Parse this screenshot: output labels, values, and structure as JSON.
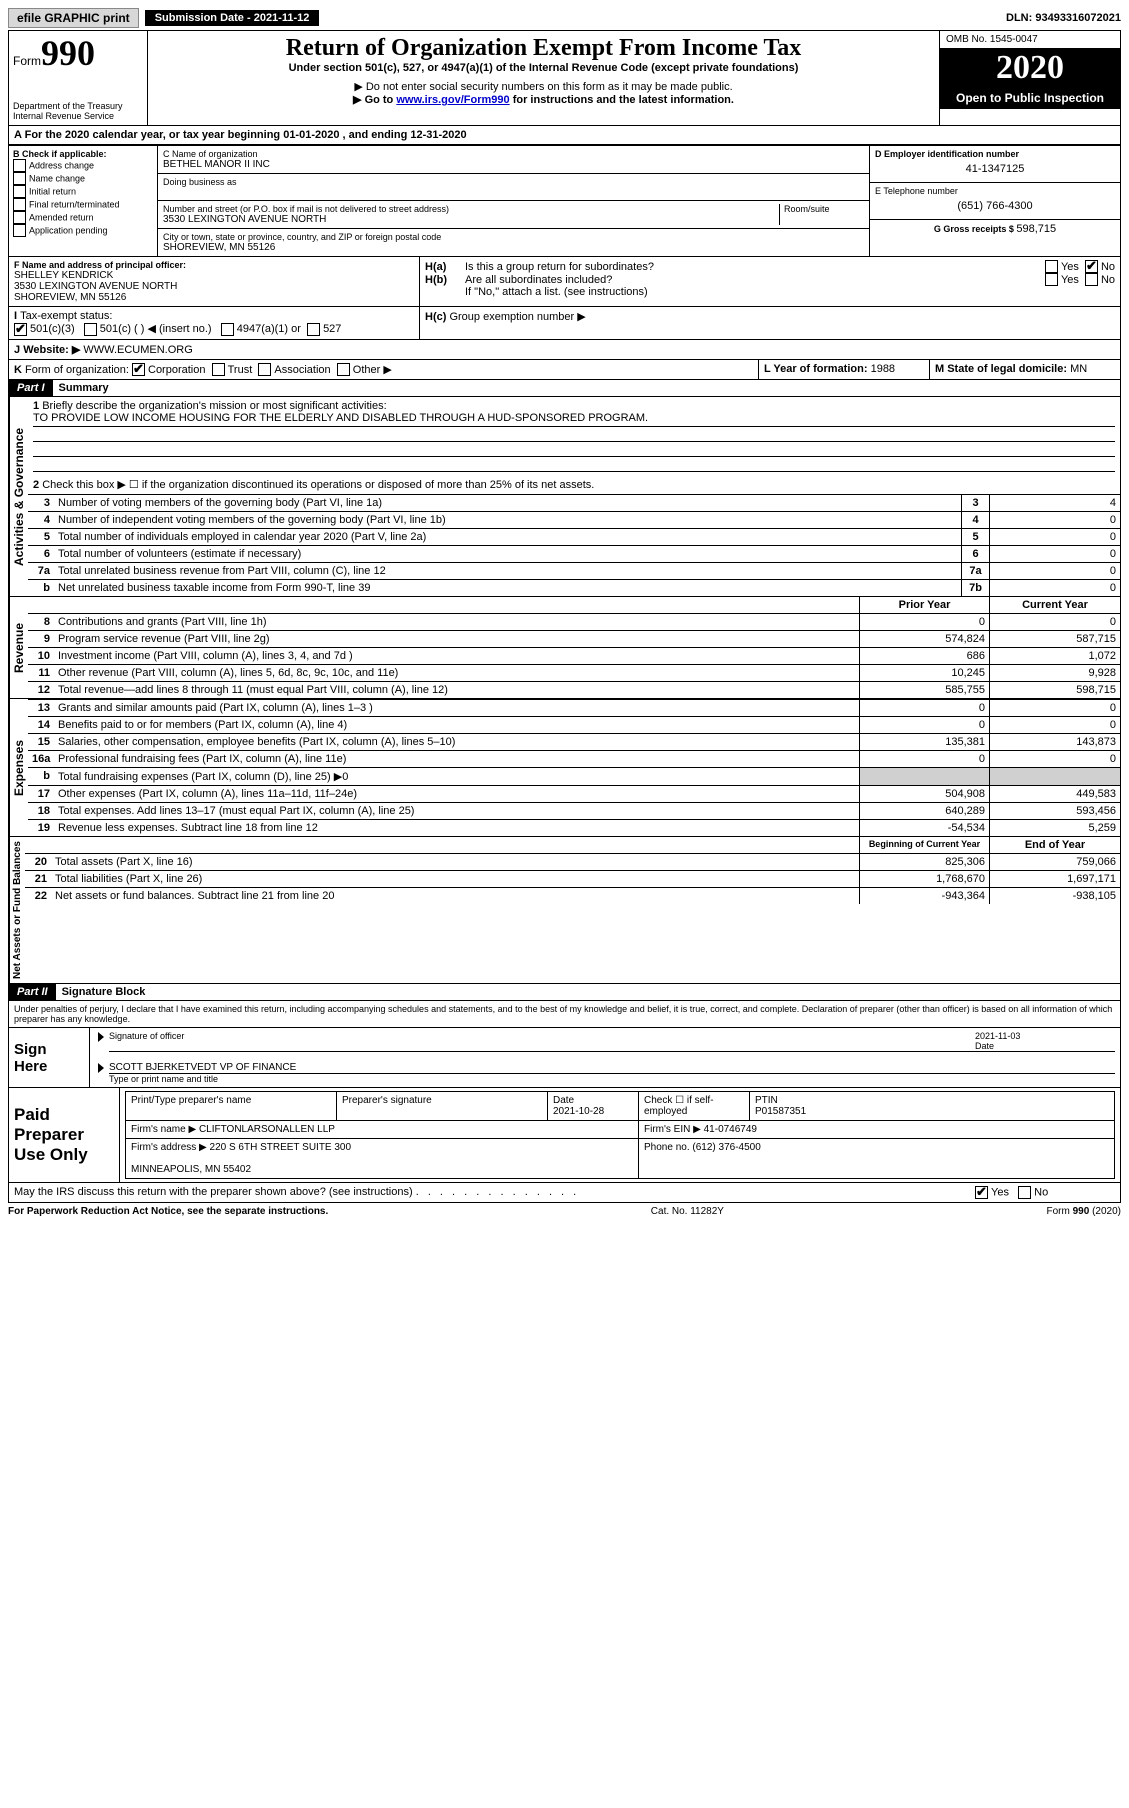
{
  "topbar": {
    "efile": "efile GRAPHIC print",
    "subdate_label": "Submission Date - 2021-11-12",
    "dln": "DLN: 93493316072021"
  },
  "header": {
    "form_word": "Form",
    "form_num": "990",
    "dept": "Department of the Treasury\nInternal Revenue Service",
    "title": "Return of Organization Exempt From Income Tax",
    "subtitle": "Under section 501(c), 527, or 4947(a)(1) of the Internal Revenue Code (except private foundations)",
    "note1": "▶ Do not enter social security numbers on this form as it may be made public.",
    "note2_pre": "▶ Go to ",
    "note2_link": "www.irs.gov/Form990",
    "note2_post": " for instructions and the latest information.",
    "omb": "OMB No. 1545-0047",
    "year": "2020",
    "open": "Open to Public Inspection"
  },
  "line_a": "For the 2020 calendar year, or tax year beginning 01-01-2020  , and ending 12-31-2020",
  "section_b": {
    "check_label": "Check if applicable:",
    "opts": [
      "Address change",
      "Name change",
      "Initial return",
      "Final return/terminated",
      "Amended return",
      "Application pending"
    ],
    "c_label": "C Name of organization",
    "org_name": "BETHEL MANOR II INC",
    "dba_label": "Doing business as",
    "addr_label": "Number and street (or P.O. box if mail is not delivered to street address)",
    "room_label": "Room/suite",
    "addr": "3530 LEXINGTON AVENUE NORTH",
    "city_label": "City or town, state or province, country, and ZIP or foreign postal code",
    "city": "SHOREVIEW, MN  55126",
    "d_label": "D Employer identification number",
    "ein": "41-1347125",
    "e_label": "E Telephone number",
    "phone": "(651) 766-4300",
    "g_label": "G Gross receipts $ ",
    "gross": "598,715",
    "f_label": "F  Name and address of principal officer:",
    "officer": "SHELLEY KENDRICK\n3530 LEXINGTON AVENUE NORTH\nSHOREVIEW, MN  55126",
    "ha": "Is this a group return for subordinates?",
    "hb": "Are all subordinates included?",
    "hnote": "If \"No,\" attach a list. (see instructions)",
    "hc": "Group exemption number ▶",
    "yes": "Yes",
    "no": "No"
  },
  "tax_status": {
    "label": "Tax-exempt status:",
    "c3": "501(c)(3)",
    "c_other": "501(c) (  ) ◀ (insert no.)",
    "a1": "4947(a)(1) or",
    "s527": "527"
  },
  "website": {
    "label": "Website: ▶",
    "value": "WWW.ECUMEN.ORG"
  },
  "line_k": {
    "label": "Form of organization:",
    "opts": [
      "Corporation",
      "Trust",
      "Association",
      "Other ▶"
    ],
    "l_label": "L Year of formation:",
    "l_val": "1988",
    "m_label": "M State of legal domicile:",
    "m_val": "MN"
  },
  "part1": {
    "title": "Part I",
    "subtitle": "Summary",
    "vlabel1": "Activities & Governance",
    "vlabel2": "Revenue",
    "vlabel3": "Expenses",
    "vlabel4": "Net Assets or Fund Balances",
    "q1": "Briefly describe the organization's mission or most significant activities:",
    "mission": "TO PROVIDE LOW INCOME HOUSING FOR THE ELDERLY AND DISABLED THROUGH A HUD-SPONSORED PROGRAM.",
    "q2": "Check this box ▶ ☐  if the organization discontinued its operations or disposed of more than 25% of its net assets.",
    "rows_gov": [
      {
        "n": "3",
        "t": "Number of voting members of the governing body (Part VI, line 1a)",
        "b": "3",
        "v": "4"
      },
      {
        "n": "4",
        "t": "Number of independent voting members of the governing body (Part VI, line 1b)",
        "b": "4",
        "v": "0"
      },
      {
        "n": "5",
        "t": "Total number of individuals employed in calendar year 2020 (Part V, line 2a)",
        "b": "5",
        "v": "0"
      },
      {
        "n": "6",
        "t": "Total number of volunteers (estimate if necessary)",
        "b": "6",
        "v": "0"
      },
      {
        "n": "7a",
        "t": "Total unrelated business revenue from Part VIII, column (C), line 12",
        "b": "7a",
        "v": "0"
      },
      {
        "n": "b",
        "t": "Net unrelated business taxable income from Form 990-T, line 39",
        "b": "7b",
        "v": "0"
      }
    ],
    "col_py": "Prior Year",
    "col_cy": "Current Year",
    "rows_rev": [
      {
        "n": "8",
        "t": "Contributions and grants (Part VIII, line 1h)",
        "py": "0",
        "cy": "0"
      },
      {
        "n": "9",
        "t": "Program service revenue (Part VIII, line 2g)",
        "py": "574,824",
        "cy": "587,715"
      },
      {
        "n": "10",
        "t": "Investment income (Part VIII, column (A), lines 3, 4, and 7d )",
        "py": "686",
        "cy": "1,072"
      },
      {
        "n": "11",
        "t": "Other revenue (Part VIII, column (A), lines 5, 6d, 8c, 9c, 10c, and 11e)",
        "py": "10,245",
        "cy": "9,928"
      },
      {
        "n": "12",
        "t": "Total revenue—add lines 8 through 11 (must equal Part VIII, column (A), line 12)",
        "py": "585,755",
        "cy": "598,715"
      }
    ],
    "rows_exp": [
      {
        "n": "13",
        "t": "Grants and similar amounts paid (Part IX, column (A), lines 1–3 )",
        "py": "0",
        "cy": "0"
      },
      {
        "n": "14",
        "t": "Benefits paid to or for members (Part IX, column (A), line 4)",
        "py": "0",
        "cy": "0"
      },
      {
        "n": "15",
        "t": "Salaries, other compensation, employee benefits (Part IX, column (A), lines 5–10)",
        "py": "135,381",
        "cy": "143,873"
      },
      {
        "n": "16a",
        "t": "Professional fundraising fees (Part IX, column (A), line 11e)",
        "py": "0",
        "cy": "0"
      },
      {
        "n": "b",
        "t": "Total fundraising expenses (Part IX, column (D), line 25) ▶0",
        "py": "",
        "cy": "",
        "shade": true
      },
      {
        "n": "17",
        "t": "Other expenses (Part IX, column (A), lines 11a–11d, 11f–24e)",
        "py": "504,908",
        "cy": "449,583"
      },
      {
        "n": "18",
        "t": "Total expenses. Add lines 13–17 (must equal Part IX, column (A), line 25)",
        "py": "640,289",
        "cy": "593,456"
      },
      {
        "n": "19",
        "t": "Revenue less expenses. Subtract line 18 from line 12",
        "py": "-54,534",
        "cy": "5,259"
      }
    ],
    "col_boy": "Beginning of Current Year",
    "col_eoy": "End of Year",
    "rows_net": [
      {
        "n": "20",
        "t": "Total assets (Part X, line 16)",
        "py": "825,306",
        "cy": "759,066"
      },
      {
        "n": "21",
        "t": "Total liabilities (Part X, line 26)",
        "py": "1,768,670",
        "cy": "1,697,171"
      },
      {
        "n": "22",
        "t": "Net assets or fund balances. Subtract line 21 from line 20",
        "py": "-943,364",
        "cy": "-938,105"
      }
    ]
  },
  "part2": {
    "title": "Part II",
    "subtitle": "Signature Block",
    "jurat": "Under penalties of perjury, I declare that I have examined this return, including accompanying schedules and statements, and to the best of my knowledge and belief, it is true, correct, and complete. Declaration of preparer (other than officer) is based on all information of which preparer has any knowledge.",
    "sign_here": "Sign Here",
    "sig_officer": "Signature of officer",
    "sig_date": "Date",
    "sig_date_val": "2021-11-03",
    "officer_name": "SCOTT BJERKETVEDT VP OF FINANCE",
    "type_name": "Type or print name and title",
    "paid_label": "Paid Preparer Use Only",
    "prep_name_label": "Print/Type preparer's name",
    "prep_sig_label": "Preparer's signature",
    "prep_date_label": "Date",
    "prep_date": "2021-10-28",
    "prep_check": "Check ☐ if self-employed",
    "ptin_label": "PTIN",
    "ptin": "P01587351",
    "firm_name_label": "Firm's name   ▶",
    "firm_name": "CLIFTONLARSONALLEN LLP",
    "firm_ein_label": "Firm's EIN ▶",
    "firm_ein": "41-0746749",
    "firm_addr_label": "Firm's address ▶",
    "firm_addr": "220 S 6TH STREET SUITE 300\n\nMINNEAPOLIS, MN  55402",
    "firm_phone_label": "Phone no.",
    "firm_phone": "(612) 376-4500",
    "may_discuss": "May the IRS discuss this return with the preparer shown above? (see instructions)"
  },
  "footer": {
    "left": "For Paperwork Reduction Act Notice, see the separate instructions.",
    "mid": "Cat. No. 11282Y",
    "right": "Form 990 (2020)"
  }
}
